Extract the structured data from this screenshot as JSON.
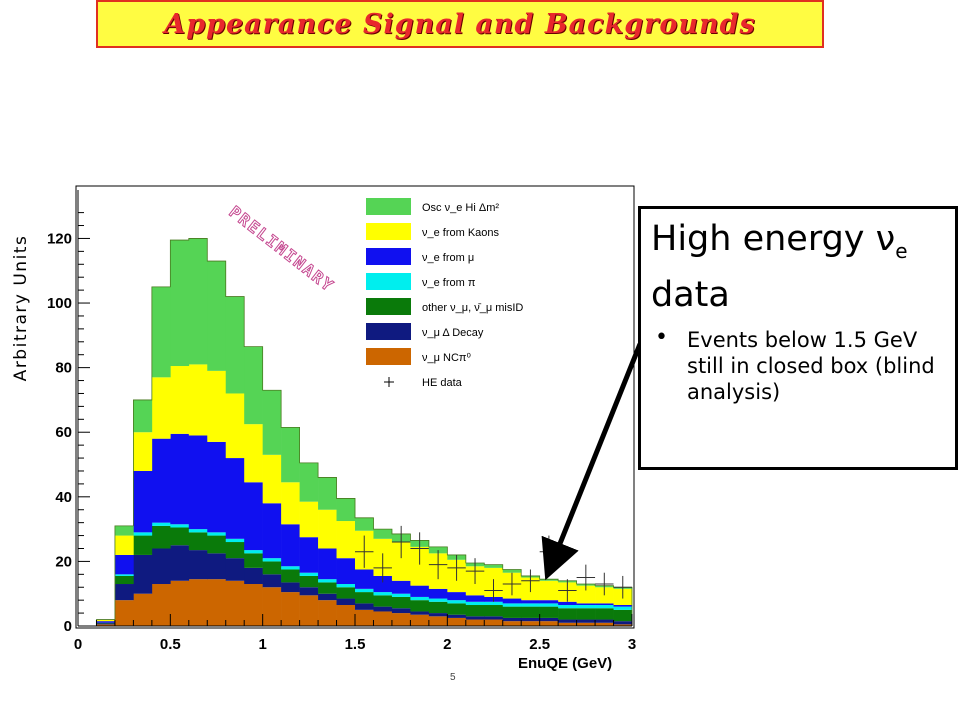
{
  "slide_title": "Appearance Signal and Backgrounds",
  "y_axis_label": "Arbitrary Units",
  "watermark": "PRELIMINARY",
  "callout": {
    "heading_text": "High energy ",
    "heading_nu": "ν",
    "heading_sub": "e",
    "heading_line2": "data",
    "bullet": "Events below 1.5 GeV still in closed box (blind analysis)"
  },
  "footnote": "5",
  "colors": {
    "arrow": "#000000",
    "title_bg": "#fffc42",
    "title_text": "#e8282c"
  },
  "chart_data": {
    "type": "bar",
    "stacked": true,
    "xlabel": "EnuQE (GeV)",
    "ylabel": "Arbitrary Units",
    "xlim": [
      0,
      3
    ],
    "ylim": [
      0,
      135
    ],
    "x_ticks": [
      "0",
      "0.5",
      "1",
      "1.5",
      "2",
      "2.5",
      "3"
    ],
    "y_ticks": [
      "0",
      "20",
      "40",
      "60",
      "80",
      "100",
      "120"
    ],
    "bin_edges": [
      0.1,
      0.2,
      0.3,
      0.4,
      0.5,
      0.6,
      0.7,
      0.8,
      0.9,
      1.0,
      1.1,
      1.2,
      1.3,
      1.4,
      1.5,
      1.6,
      1.7,
      1.8,
      1.9,
      2.0,
      2.1,
      2.2,
      2.3,
      2.4,
      2.5,
      2.6,
      2.7,
      2.8,
      2.9,
      3.0
    ],
    "legend_position": "top-right",
    "series": [
      {
        "name": "ν_μ NCπ⁰",
        "color": "#cc6600",
        "values": [
          0.5,
          8,
          10,
          13,
          14,
          14.5,
          14.5,
          14,
          13,
          12,
          10.5,
          9.5,
          8,
          6.5,
          5,
          4.5,
          4,
          3.5,
          3,
          2.5,
          2,
          2,
          1.5,
          1.5,
          1.5,
          1,
          1,
          1,
          0.5
        ]
      },
      {
        "name": "ν_μ Δ Decay",
        "color": "#0f1a80",
        "values": [
          0.3,
          5,
          12,
          11,
          11,
          9,
          8,
          7,
          5,
          4,
          3,
          2.5,
          2,
          2,
          2,
          1.5,
          1.5,
          1,
          1,
          1,
          1,
          1,
          1,
          1,
          1,
          1,
          1,
          1,
          1
        ]
      },
      {
        "name": "other ν_μ, ν̄_μ misID",
        "color": "#0a7a0a",
        "values": [
          0.2,
          2.5,
          6,
          7,
          5.5,
          5.5,
          5.5,
          5,
          4.5,
          4,
          4,
          3.5,
          3.5,
          3.5,
          3.5,
          3.5,
          3.5,
          3.5,
          3.5,
          3.5,
          3.5,
          3.5,
          3.5,
          3.5,
          3.5,
          3.5,
          3.5,
          3.5,
          3.5
        ]
      },
      {
        "name": "ν_e from π",
        "color": "#00eeee",
        "values": [
          0,
          0.5,
          1,
          1,
          1,
          1,
          1,
          1,
          1,
          1,
          1,
          1,
          1,
          1,
          1,
          1,
          1,
          1,
          1,
          1,
          1,
          1,
          1,
          1,
          1,
          1,
          1,
          1,
          1
        ]
      },
      {
        "name": "ν_e from μ",
        "color": "#1010f0",
        "values": [
          0.5,
          6,
          19,
          26,
          28,
          29,
          28,
          25,
          21,
          17,
          13,
          11,
          9.5,
          8,
          6,
          5,
          4,
          3.5,
          3,
          2.5,
          2,
          1.5,
          1.5,
          1,
          1,
          1,
          0.5,
          0.5,
          0.5
        ]
      },
      {
        "name": "ν_e from Kaons",
        "color": "#ffff00",
        "values": [
          0.5,
          6,
          12,
          19,
          21,
          22,
          22,
          20,
          18,
          15,
          13,
          11,
          12,
          11.5,
          12,
          11.5,
          12,
          12,
          11,
          10,
          9,
          9,
          8,
          7,
          6,
          6,
          5.5,
          5,
          5
        ]
      },
      {
        "name": "Osc ν_e Hi Δm²",
        "color": "#55d455",
        "values": [
          0,
          3,
          10,
          28,
          39,
          39,
          34,
          30,
          24,
          20,
          17,
          12,
          10,
          7,
          4,
          3,
          2.5,
          2,
          2,
          1.5,
          1,
          1,
          1,
          0.5,
          0.5,
          0.5,
          0.5,
          0.5,
          0.5
        ]
      }
    ],
    "data_series": {
      "name": "HE data",
      "points": [
        {
          "x": 1.55,
          "y": 23,
          "err": 5
        },
        {
          "x": 1.65,
          "y": 18,
          "err": 4.5
        },
        {
          "x": 1.75,
          "y": 26,
          "err": 5
        },
        {
          "x": 1.85,
          "y": 24,
          "err": 5
        },
        {
          "x": 1.95,
          "y": 19,
          "err": 4.5
        },
        {
          "x": 2.05,
          "y": 18,
          "err": 4
        },
        {
          "x": 2.15,
          "y": 17,
          "err": 4
        },
        {
          "x": 2.25,
          "y": 11,
          "err": 3.5
        },
        {
          "x": 2.35,
          "y": 13,
          "err": 3.5
        },
        {
          "x": 2.45,
          "y": 14,
          "err": 3.5
        },
        {
          "x": 2.55,
          "y": 23,
          "err": 5
        },
        {
          "x": 2.65,
          "y": 11,
          "err": 3.5
        },
        {
          "x": 2.75,
          "y": 15,
          "err": 4
        },
        {
          "x": 2.85,
          "y": 13,
          "err": 3.5
        },
        {
          "x": 2.95,
          "y": 12,
          "err": 3.5
        }
      ]
    }
  }
}
